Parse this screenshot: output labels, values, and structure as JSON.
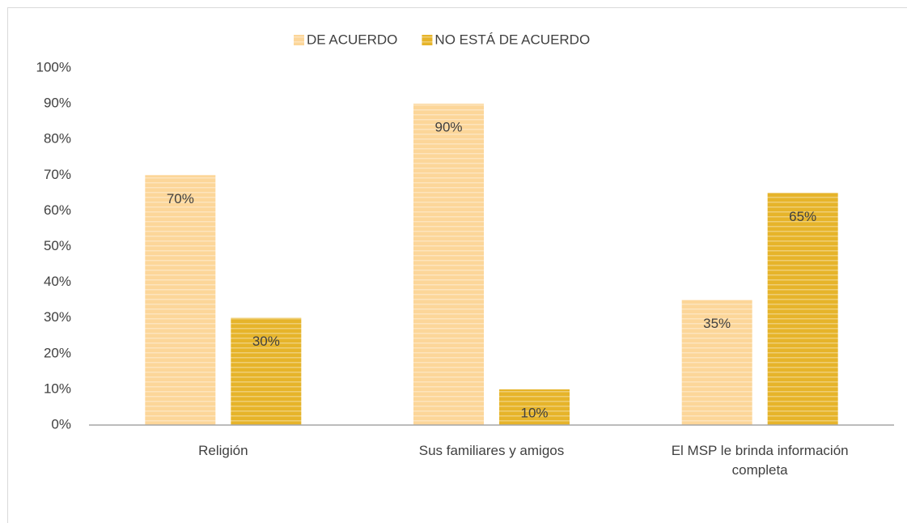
{
  "chart_data": {
    "type": "bar",
    "categories": [
      "Religión",
      "Sus familiares y amigos",
      "El MSP le brinda información completa"
    ],
    "series": [
      {
        "name": "DE ACUERDO",
        "color": "#fcd699",
        "values": [
          70,
          90,
          35
        ],
        "value_labels": [
          "70%",
          "90%",
          "35%"
        ]
      },
      {
        "name": "NO ESTÁ DE ACUERDO",
        "color": "#e6b42a",
        "values": [
          30,
          10,
          65
        ],
        "value_labels": [
          "30%",
          "10%",
          "65%"
        ]
      }
    ],
    "ylim": [
      0,
      100
    ],
    "yticks": [
      {
        "value": 0,
        "label": "0%"
      },
      {
        "value": 10,
        "label": "10%"
      },
      {
        "value": 20,
        "label": "20%"
      },
      {
        "value": 30,
        "label": "30%"
      },
      {
        "value": 40,
        "label": "40%"
      },
      {
        "value": 50,
        "label": "50%"
      },
      {
        "value": 60,
        "label": "60%"
      },
      {
        "value": 70,
        "label": "70%"
      },
      {
        "value": 80,
        "label": "80%"
      },
      {
        "value": 90,
        "label": "90%"
      },
      {
        "value": 100,
        "label": "100%"
      }
    ],
    "grid": false,
    "legend": "top"
  }
}
